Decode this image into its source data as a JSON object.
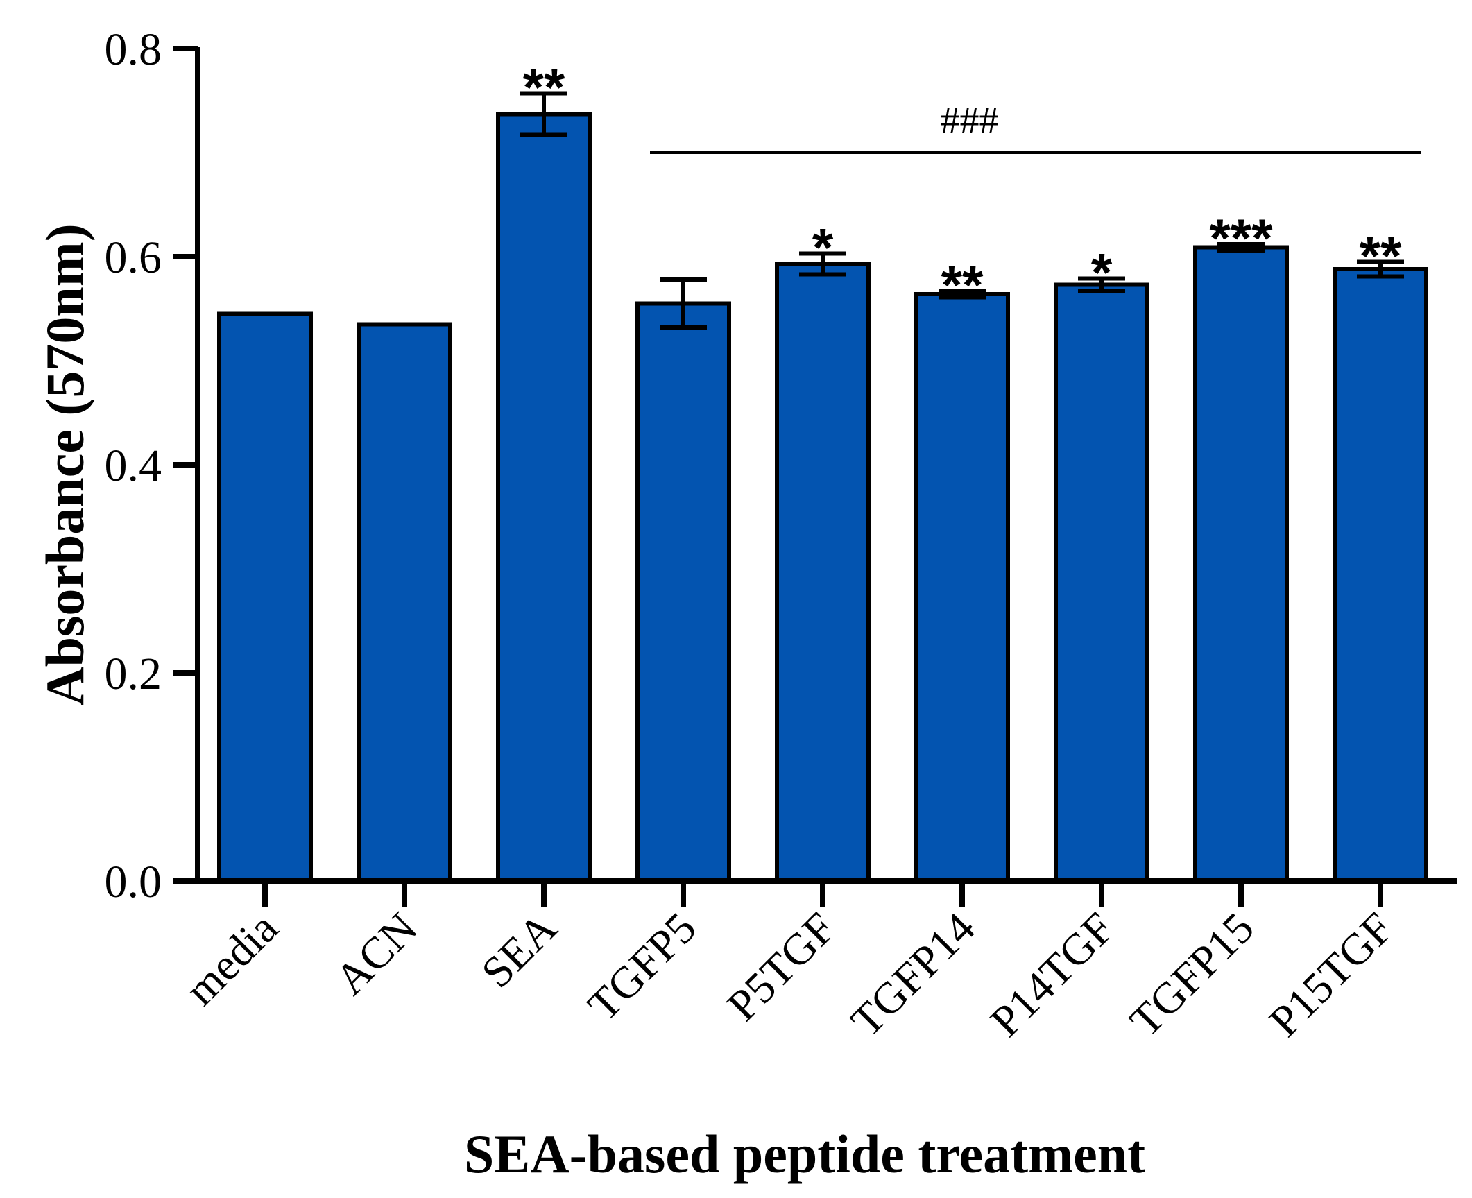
{
  "chart_data": {
    "type": "bar",
    "title": "",
    "xlabel": "SEA-based peptide treatment",
    "ylabel": "Absorbance (570nm)",
    "ylim": [
      0,
      0.8
    ],
    "yticks": [
      "0.0",
      "0.2",
      "0.4",
      "0.6",
      "0.8"
    ],
    "ytick_values": [
      0,
      0.2,
      0.4,
      0.6,
      0.8
    ],
    "categories": [
      "media",
      "ACN",
      "SEA",
      "TGFP5",
      "P5TGF",
      "TGFP14",
      "P14TGF",
      "TGFP15",
      "P15TGF"
    ],
    "values": [
      0.545,
      0.535,
      0.737,
      0.555,
      0.593,
      0.564,
      0.573,
      0.609,
      0.588
    ],
    "errors": [
      0.0,
      0.0,
      0.02,
      0.023,
      0.01,
      0.003,
      0.006,
      0.003,
      0.007
    ],
    "significance": [
      "",
      "",
      "**",
      "",
      "*",
      "**",
      "*",
      "***",
      "**"
    ],
    "group_annotation": {
      "label": "###",
      "from_category": "TGFP5",
      "to_category": "P15TGF"
    },
    "bar_color": "#0354B0",
    "edge_color": "#000000",
    "grid": false,
    "legend": "none"
  }
}
